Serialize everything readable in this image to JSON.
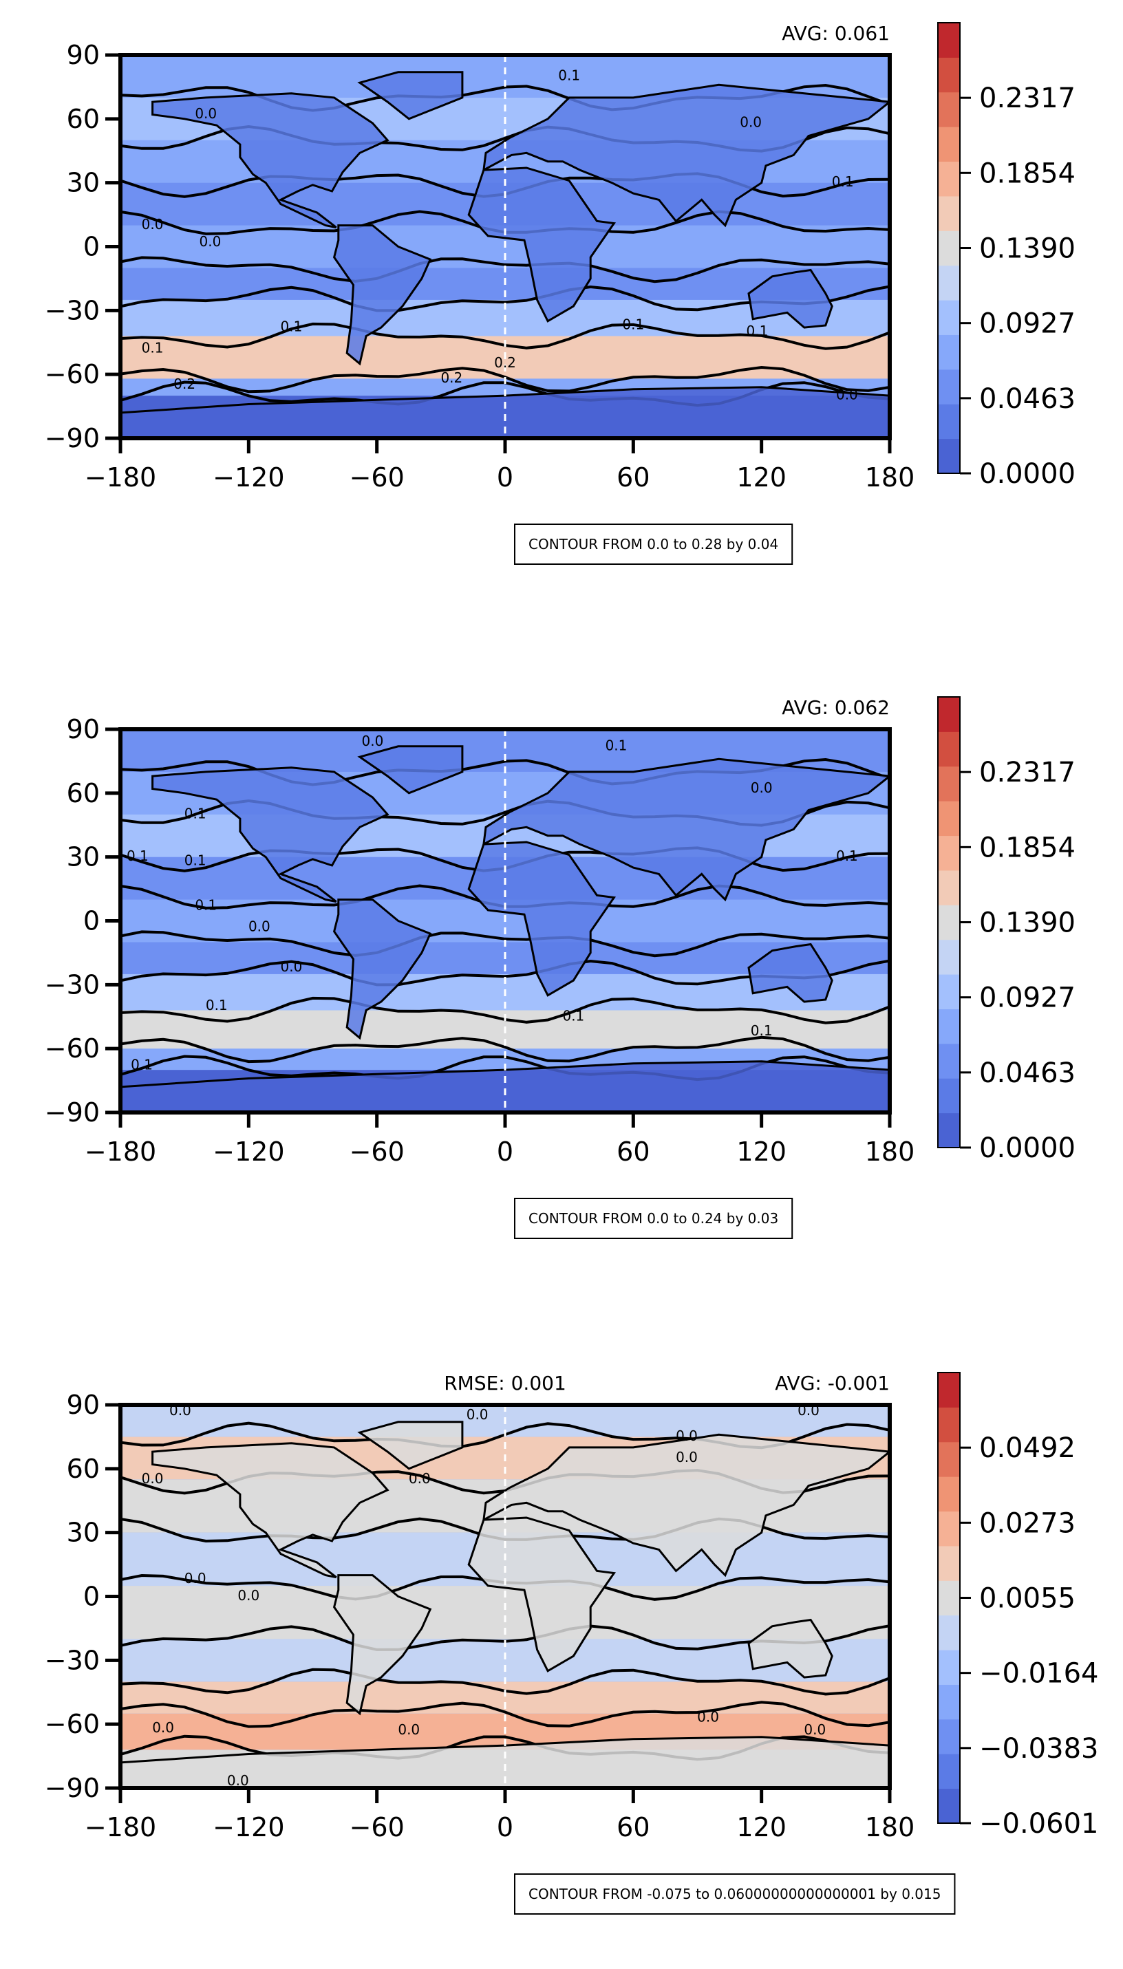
{
  "chart_data": [
    {
      "type": "heatmap",
      "title": "",
      "xlabel": "",
      "ylabel": "",
      "xlim": [
        -180,
        180
      ],
      "ylim": [
        -90,
        90
      ],
      "xticks": [
        "−180",
        "−120",
        "−60",
        "0",
        "60",
        "120",
        "180"
      ],
      "yticks": [
        "90",
        "60",
        "30",
        "0",
        "−30",
        "−60",
        "−90"
      ],
      "stats": {
        "avg": "AVG: 0.061",
        "rmse": ""
      },
      "colorbar": {
        "levels": 13,
        "ticks": [
          "0.0000",
          "0.0463",
          "0.0927",
          "0.1390",
          "0.1854",
          "0.2317"
        ],
        "vmin": 0.0,
        "vmax": 0.278
      },
      "contour_note": "CONTOUR FROM 0.0 to 0.28 by 0.04",
      "bands": [
        {
          "lat": [
            -90,
            -70
          ],
          "level": 0
        },
        {
          "lat": [
            -70,
            -62
          ],
          "level": 3
        },
        {
          "lat": [
            -62,
            -42
          ],
          "level": 7
        },
        {
          "lat": [
            -42,
            -25
          ],
          "level": 4
        },
        {
          "lat": [
            -25,
            -10
          ],
          "level": 2
        },
        {
          "lat": [
            -10,
            10
          ],
          "level": 3
        },
        {
          "lat": [
            10,
            30
          ],
          "level": 2
        },
        {
          "lat": [
            30,
            50
          ],
          "level": 3
        },
        {
          "lat": [
            50,
            70
          ],
          "level": 4
        },
        {
          "lat": [
            70,
            90
          ],
          "level": 3
        }
      ],
      "contour_labels": [
        {
          "text": "0.1",
          "lon": 30,
          "lat": 80
        },
        {
          "text": "0.0",
          "lon": -140,
          "lat": 62
        },
        {
          "text": "0.0",
          "lon": -165,
          "lat": 10
        },
        {
          "text": "0.0",
          "lon": -138,
          "lat": 2
        },
        {
          "text": "0.1",
          "lon": -100,
          "lat": -38
        },
        {
          "text": "0.1",
          "lon": -165,
          "lat": -48
        },
        {
          "text": "0.2",
          "lon": -150,
          "lat": -65
        },
        {
          "text": "0.2",
          "lon": -25,
          "lat": -62
        },
        {
          "text": "0.2",
          "lon": 0,
          "lat": -55
        },
        {
          "text": "0.1",
          "lon": 60,
          "lat": -37
        },
        {
          "text": "0.1",
          "lon": 118,
          "lat": -40
        },
        {
          "text": "0.1",
          "lon": 158,
          "lat": 30
        },
        {
          "text": "0.0",
          "lon": 115,
          "lat": 58
        },
        {
          "text": "0.0",
          "lon": 160,
          "lat": -70
        }
      ]
    },
    {
      "type": "heatmap",
      "title": "",
      "xlabel": "",
      "ylabel": "",
      "xlim": [
        -180,
        180
      ],
      "ylim": [
        -90,
        90
      ],
      "xticks": [
        "−180",
        "−120",
        "−60",
        "0",
        "60",
        "120",
        "180"
      ],
      "yticks": [
        "90",
        "60",
        "30",
        "0",
        "−30",
        "−60",
        "−90"
      ],
      "stats": {
        "avg": "AVG: 0.062",
        "rmse": ""
      },
      "colorbar": {
        "levels": 13,
        "ticks": [
          "0.0000",
          "0.0463",
          "0.0927",
          "0.1390",
          "0.1854",
          "0.2317"
        ],
        "vmin": 0.0,
        "vmax": 0.278
      },
      "contour_note": "CONTOUR FROM 0.0 to 0.24 by 0.03",
      "bands": [
        {
          "lat": [
            -90,
            -70
          ],
          "level": 0
        },
        {
          "lat": [
            -70,
            -60
          ],
          "level": 3
        },
        {
          "lat": [
            -60,
            -42
          ],
          "level": 6
        },
        {
          "lat": [
            -42,
            -25
          ],
          "level": 4
        },
        {
          "lat": [
            -25,
            -10
          ],
          "level": 2
        },
        {
          "lat": [
            -10,
            10
          ],
          "level": 3
        },
        {
          "lat": [
            10,
            30
          ],
          "level": 2
        },
        {
          "lat": [
            30,
            50
          ],
          "level": 4
        },
        {
          "lat": [
            50,
            70
          ],
          "level": 3
        },
        {
          "lat": [
            70,
            90
          ],
          "level": 2
        }
      ],
      "contour_labels": [
        {
          "text": "0.1",
          "lon": 52,
          "lat": 82
        },
        {
          "text": "0.0",
          "lon": -62,
          "lat": 84
        },
        {
          "text": "0.1",
          "lon": -145,
          "lat": 50
        },
        {
          "text": "0.1",
          "lon": -172,
          "lat": 30
        },
        {
          "text": "0.1",
          "lon": -145,
          "lat": 28
        },
        {
          "text": "0.1",
          "lon": -140,
          "lat": 7
        },
        {
          "text": "0.0",
          "lon": -115,
          "lat": -3
        },
        {
          "text": "0.0",
          "lon": -100,
          "lat": -22
        },
        {
          "text": "0.1",
          "lon": -135,
          "lat": -40
        },
        {
          "text": "0.1",
          "lon": -170,
          "lat": -68
        },
        {
          "text": "0.1",
          "lon": 32,
          "lat": -45
        },
        {
          "text": "0.1",
          "lon": 120,
          "lat": -52
        },
        {
          "text": "0.0",
          "lon": 120,
          "lat": 62
        },
        {
          "text": "0.1",
          "lon": 160,
          "lat": 30
        }
      ]
    },
    {
      "type": "heatmap",
      "title": "",
      "xlabel": "",
      "ylabel": "",
      "xlim": [
        -180,
        180
      ],
      "ylim": [
        -90,
        90
      ],
      "xticks": [
        "−180",
        "−120",
        "−60",
        "0",
        "60",
        "120",
        "180"
      ],
      "yticks": [
        "90",
        "60",
        "30",
        "0",
        "−30",
        "−60",
        "−90"
      ],
      "stats": {
        "avg": "AVG: -0.001",
        "rmse": "RMSE: 0.001"
      },
      "colorbar": {
        "levels": 13,
        "ticks": [
          "−0.0601",
          "−0.0383",
          "−0.0164",
          "0.0055",
          "0.0273",
          "0.0492"
        ],
        "vmin": -0.0601,
        "vmax": 0.0601
      },
      "contour_note": "CONTOUR FROM -0.075 to 0.06000000000000001 by 0.015",
      "bands": [
        {
          "lat": [
            -90,
            -72
          ],
          "level": 6
        },
        {
          "lat": [
            -72,
            -55
          ],
          "level": 8
        },
        {
          "lat": [
            -55,
            -40
          ],
          "level": 7
        },
        {
          "lat": [
            -40,
            -20
          ],
          "level": 5
        },
        {
          "lat": [
            -20,
            5
          ],
          "level": 6
        },
        {
          "lat": [
            5,
            30
          ],
          "level": 5
        },
        {
          "lat": [
            30,
            55
          ],
          "level": 6
        },
        {
          "lat": [
            55,
            75
          ],
          "level": 7
        },
        {
          "lat": [
            75,
            90
          ],
          "level": 5
        }
      ],
      "contour_labels": [
        {
          "text": "0.0",
          "lon": -152,
          "lat": 87
        },
        {
          "text": "0.0",
          "lon": -13,
          "lat": 85
        },
        {
          "text": "0.0",
          "lon": 142,
          "lat": 87
        },
        {
          "text": "0.0",
          "lon": -165,
          "lat": 55
        },
        {
          "text": "0.0",
          "lon": -40,
          "lat": 55
        },
        {
          "text": "0.0",
          "lon": 85,
          "lat": 75
        },
        {
          "text": "0.0",
          "lon": 85,
          "lat": 65
        },
        {
          "text": "0.0",
          "lon": -145,
          "lat": 8
        },
        {
          "text": "0.0",
          "lon": -120,
          "lat": 0
        },
        {
          "text": "0.0",
          "lon": -160,
          "lat": -62
        },
        {
          "text": "0.0",
          "lon": -45,
          "lat": -63
        },
        {
          "text": "0.0",
          "lon": 95,
          "lat": -57
        },
        {
          "text": "0.0",
          "lon": 145,
          "lat": -63
        },
        {
          "text": "0.0",
          "lon": -125,
          "lat": -87
        }
      ]
    }
  ]
}
